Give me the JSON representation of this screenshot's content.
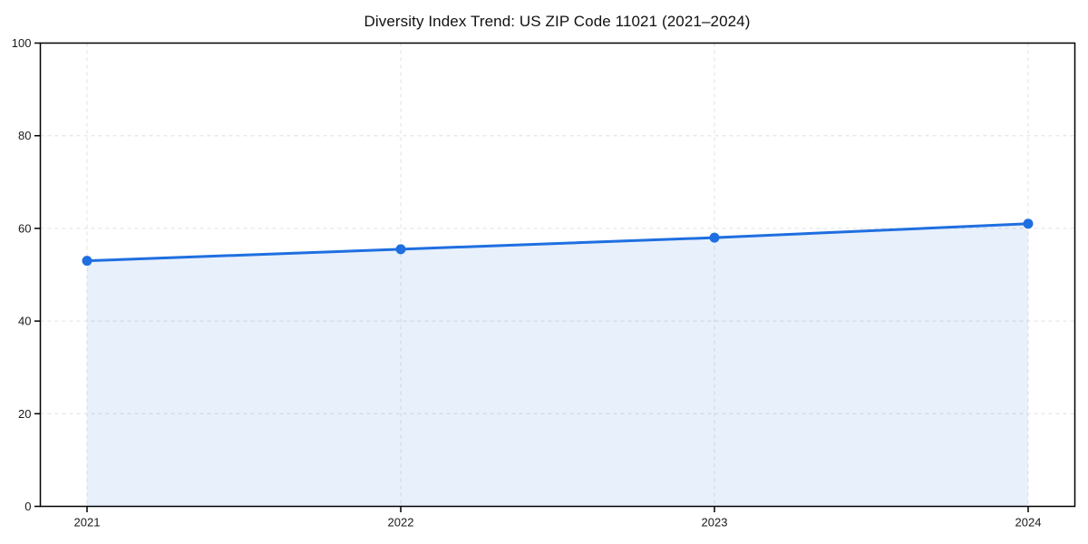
{
  "page": {
    "background": "#ffffff"
  },
  "chart_data": {
    "type": "line",
    "title": "Diversity Index Trend: US ZIP Code 11021 (2021–2024)",
    "categories": [
      "2021",
      "2022",
      "2023",
      "2024"
    ],
    "series": [
      {
        "name": "Diversity Index",
        "values": [
          53,
          55.5,
          58,
          61
        ]
      }
    ],
    "xlabel": "",
    "ylabel": "",
    "ylim": [
      0,
      100
    ],
    "yticks": [
      0,
      20,
      40,
      60,
      80,
      100
    ],
    "grid": true,
    "grid_style": "dashed",
    "legend": "none",
    "area_fill": true,
    "marker": "circle",
    "colors": {
      "line": "#1f6fe0",
      "fill": "rgba(31,111,224,0.10)",
      "grid": "#e0e0e0",
      "axis": "#000000",
      "tick_text": "#1a1a1a"
    }
  }
}
